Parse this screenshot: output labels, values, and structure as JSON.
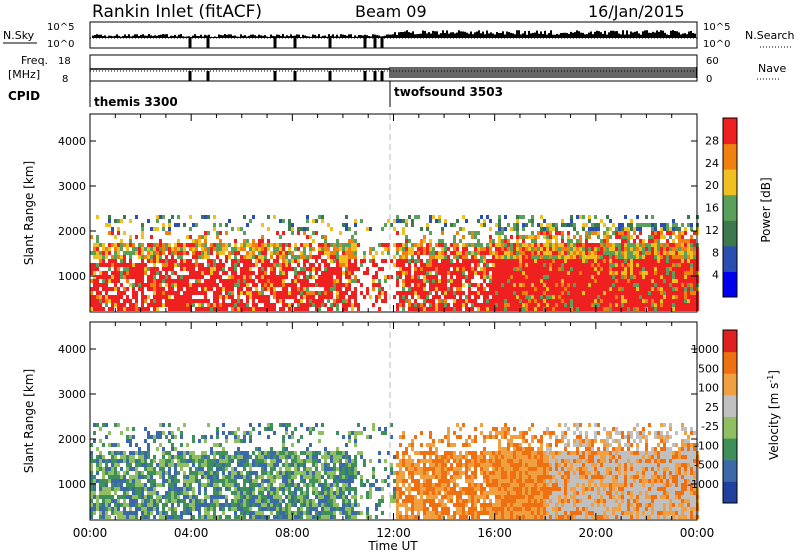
{
  "header": {
    "title": "Rankin Inlet (fitACF)",
    "beam": "Beam 09",
    "date": "16/Jan/2015"
  },
  "panels": {
    "nsky_label": "N.Sky",
    "nsearch_label": "N.Search",
    "noise_ticks": [
      "10^5",
      "10^0"
    ],
    "freq_label_1": "Freq.",
    "freq_label_2": "[MHz]",
    "freq_ticks": [
      "18",
      "8"
    ],
    "nave_label": "Nave",
    "nave_ticks": [
      "60",
      "0"
    ],
    "cpid_label": "CPID",
    "cpid_modes": [
      "themis 3300",
      "twofsound 3503"
    ]
  },
  "colorbars": {
    "power": {
      "label": "Power [dB]",
      "ticks": [
        "28",
        "24",
        "20",
        "16",
        "12",
        "8",
        "4"
      ],
      "colors": [
        "#0000ee",
        "#2a4fb0",
        "#3c7a4e",
        "#5aa05a",
        "#f0c020",
        "#f08010",
        "#ee2020"
      ]
    },
    "velocity": {
      "label": "Velocity [m s",
      "label_sup": "-1",
      "label_end": "]",
      "ticks": [
        "1000",
        "500",
        "100",
        "25",
        "-25",
        "-100",
        "-500",
        "-1000"
      ],
      "colors": [
        "#2040a0",
        "#3c6aa8",
        "#3f8f5a",
        "#8fbf60",
        "#c0c0c0",
        "#f0a040",
        "#ee7010",
        "#e02020"
      ]
    }
  },
  "chart_data": [
    {
      "type": "heatmap",
      "quantity": "Power",
      "ylabel": "Slant Range [km]",
      "xlabel": "",
      "x_ticks": [
        "00:00",
        "04:00",
        "08:00",
        "12:00",
        "16:00",
        "20:00",
        "00:00"
      ],
      "y_ticks": [
        1000,
        2000,
        3000,
        4000
      ],
      "ylim": [
        200,
        4600
      ],
      "xlim_hours": [
        0,
        24
      ],
      "colorbar_range_db": [
        0,
        32
      ]
    },
    {
      "type": "heatmap",
      "quantity": "Velocity",
      "ylabel": "Slant Range [km]",
      "xlabel": "Time UT",
      "x_ticks": [
        "00:00",
        "04:00",
        "08:00",
        "12:00",
        "16:00",
        "20:00",
        "00:00"
      ],
      "y_ticks": [
        1000,
        2000,
        3000,
        4000
      ],
      "ylim": [
        200,
        4600
      ],
      "xlim_hours": [
        0,
        24
      ],
      "colorbar_range_ms": [
        -1000,
        1000
      ]
    }
  ]
}
